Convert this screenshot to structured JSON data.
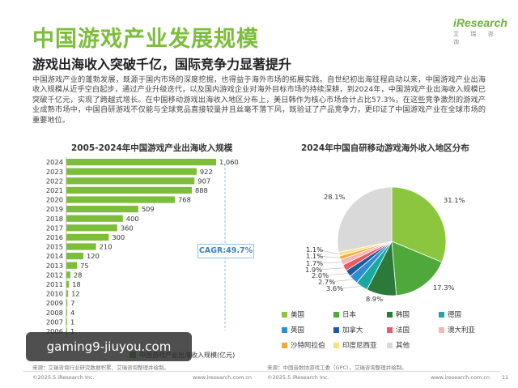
{
  "header": {
    "title": "中国游戏产业发展规模",
    "logo_main": "iResearch",
    "logo_sub": "艾 瑞 咨 询"
  },
  "subtitle": "游戏出海收入突破千亿，国际竞争力显著提升",
  "paragraph": "中国游戏产业的蓬勃发展，既源于国内市场的深度挖掘，也得益于海外市场的拓展实践。自世纪初出海征程启动以来，中国游戏产业出海收入规模从近乎空白起步，通过产业升级迭代，以及国内游戏企业对海外目标市场的持续深耕，到2024年，中国游戏产业出海收入规模已突破千亿元，实现了跨越式增长。在中国移动游戏出海收入地区分布上，美日韩作为核心市场合计占比57.3%，在这些竞争激烈的游戏产业成熟市场中，中国自研游戏不仅能与全球竞品直接较量并且丝毫不落下风，既验证了产品竞争力，更印证了中国游戏产业在全球市场的重要地位。",
  "chart_data": [
    {
      "type": "bar",
      "orientation": "horizontal",
      "title": "2005-2024年中国游戏产业出海收入规模",
      "categories": [
        "2024",
        "2023",
        "2022",
        "2021",
        "2020",
        "2019",
        "2018",
        "2017",
        "2016",
        "2015",
        "2014",
        "2013",
        "2012",
        "2011",
        "2010",
        "2009",
        "2008",
        "2007",
        "2006"
      ],
      "values": [
        1060,
        922,
        907,
        888,
        768,
        509,
        400,
        360,
        300,
        210,
        120,
        75,
        28,
        18,
        12,
        7,
        4,
        1,
        1
      ],
      "value_labels": [
        "1,060",
        "922",
        "907",
        "888",
        "768",
        "509",
        "400",
        "360",
        "300",
        "210",
        "120",
        "75",
        "28",
        "18",
        "12",
        "7",
        "4",
        "1",
        "1"
      ],
      "annotation": "CAGR:49.7%",
      "legend": "中国游戏产业出海收入规模(亿元)",
      "source": "来源：艾瑞咨询行业研究数据积累、艾瑞咨询整理并绘制。"
    },
    {
      "type": "pie",
      "title": "2024年中国自研移动游戏海外收入地区分布",
      "slices": [
        {
          "name": "美国",
          "value": 31.1,
          "label": "31.1%",
          "color": "#8cc63f"
        },
        {
          "name": "日本",
          "value": 17.3,
          "label": "17.3%",
          "color": "#4ea83a"
        },
        {
          "name": "韩国",
          "value": 8.9,
          "label": "8.9%",
          "color": "#2c7a3a"
        },
        {
          "name": "德国",
          "value": 3.6,
          "label": "3.6%",
          "color": "#19a9a0"
        },
        {
          "name": "英国",
          "value": 2.7,
          "label": "2.7%",
          "color": "#2e8fd0"
        },
        {
          "name": "加拿大",
          "value": 2.0,
          "label": "2.0%",
          "color": "#1a5c9e"
        },
        {
          "name": "法国",
          "value": 1.9,
          "label": "1.9%",
          "color": "#e85a64"
        },
        {
          "name": "澳大利亚",
          "value": 1.7,
          "label": "1.7%",
          "color": "#f5b7b7"
        },
        {
          "name": "沙特阿拉伯",
          "value": 1.1,
          "label": "1.1%",
          "color": "#f2a93b"
        },
        {
          "name": "印度尼西亚",
          "value": 1.1,
          "label": "1.1%",
          "color": "#f7e07a"
        },
        {
          "name": "其他",
          "value": 28.1,
          "label": "28.1%",
          "color": "#d9d9d9"
        }
      ],
      "source": "来源：中国音数协游戏工委（GPC），艾瑞咨询整理并绘制。"
    }
  ],
  "footer": {
    "copyright_left": "©2025.5 iResearch Inc.",
    "site_left": "www.iresearch.com.cn",
    "copyright_right": "©2025.5 iResearch Inc.",
    "site_right": "www.iresearch.com.cn",
    "page": "11"
  },
  "watermark": "gaming9-jiuyou.com",
  "colors": {
    "bar": "#7cbd3a",
    "title": "#7cbd3a",
    "cagr": "#3a82c5"
  }
}
